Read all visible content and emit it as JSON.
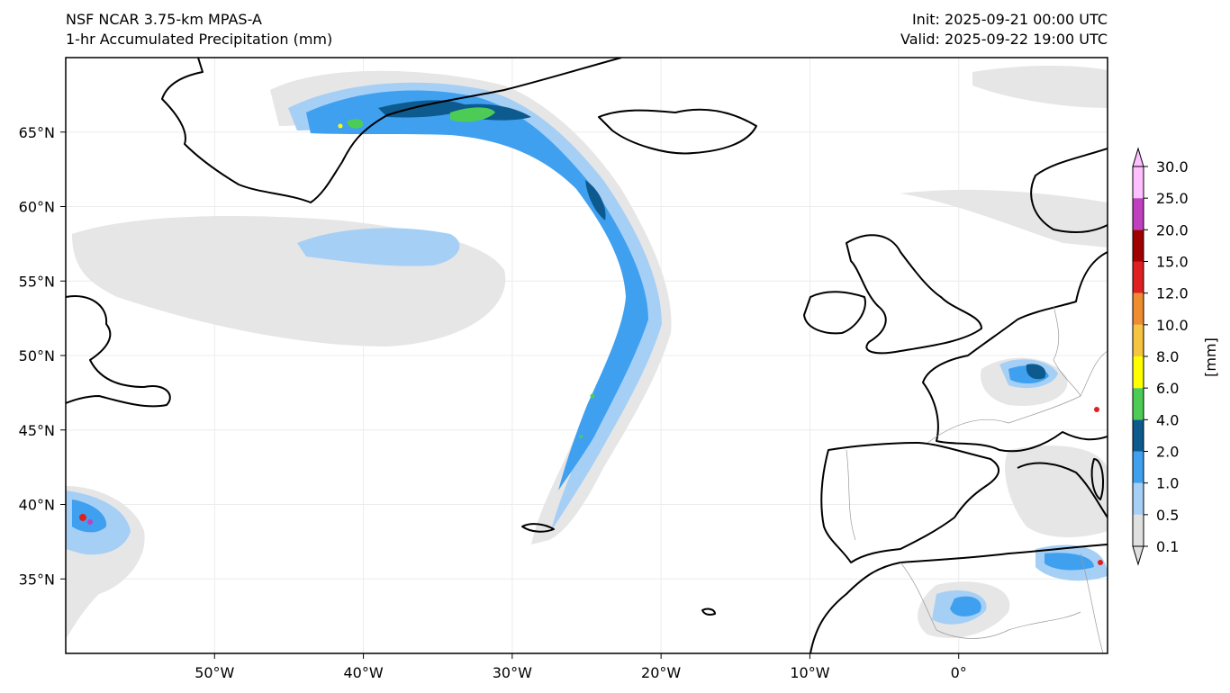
{
  "header": {
    "model": "NSF NCAR 3.75-km MPAS-A",
    "field": "1-hr Accumulated Precipitation (mm)",
    "init": "Init: 2025-09-21 00:00 UTC",
    "valid": "Valid: 2025-09-22 19:00 UTC"
  },
  "map": {
    "lon_range": [
      -60,
      10
    ],
    "lat_range": [
      30,
      70
    ],
    "lon_ticks": [
      {
        "value": -50,
        "label": "50°W"
      },
      {
        "value": -40,
        "label": "40°W"
      },
      {
        "value": -30,
        "label": "30°W"
      },
      {
        "value": -20,
        "label": "20°W"
      },
      {
        "value": -10,
        "label": "10°W"
      },
      {
        "value": 0,
        "label": "0°"
      }
    ],
    "lat_ticks": [
      {
        "value": 65,
        "label": "65°N"
      },
      {
        "value": 60,
        "label": "60°N"
      },
      {
        "value": 55,
        "label": "55°N"
      },
      {
        "value": 50,
        "label": "50°N"
      },
      {
        "value": 45,
        "label": "45°N"
      },
      {
        "value": 40,
        "label": "40°N"
      },
      {
        "value": 35,
        "label": "35°N"
      }
    ],
    "gridlines": true
  },
  "colorbar": {
    "unit_label": "[mm]",
    "levels": [
      "0.1",
      "0.5",
      "1.0",
      "2.0",
      "4.0",
      "6.0",
      "8.0",
      "10.0",
      "12.0",
      "15.0",
      "20.0",
      "25.0",
      "30.0"
    ],
    "colors": [
      "#e0e0e0",
      "#a6cff5",
      "#3fa0f0",
      "#0d5a8f",
      "#4dcc55",
      "#ffff00",
      "#f5c542",
      "#f08c30",
      "#e02020",
      "#a00000",
      "#c040c0",
      "#ffc0ff"
    ],
    "extend": "both"
  }
}
